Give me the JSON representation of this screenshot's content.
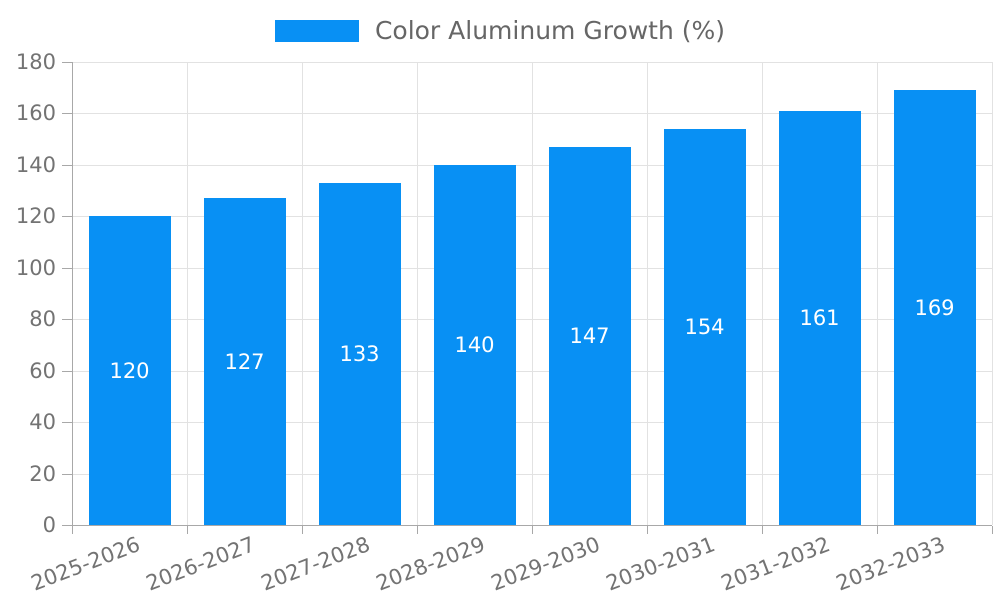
{
  "legend": {
    "label": "Color Aluminum Growth (%)",
    "swatch_color": "#0890F4"
  },
  "chart_data": {
    "type": "bar",
    "title": "Color Aluminum Growth (%)",
    "categories": [
      "2025-2026",
      "2026-2027",
      "2027-2028",
      "2028-2029",
      "2029-2030",
      "2030-2031",
      "2031-2032",
      "2032-2033"
    ],
    "values": [
      120,
      127,
      133,
      140,
      147,
      154,
      161,
      169
    ],
    "value_labels": [
      "120",
      "127",
      "133",
      "140",
      "147",
      "154",
      "161",
      "169"
    ],
    "ytick_labels": [
      "0",
      "20",
      "40",
      "60",
      "80",
      "100",
      "120",
      "140",
      "160",
      "180"
    ],
    "yticks": [
      0,
      20,
      40,
      60,
      80,
      100,
      120,
      140,
      160,
      180
    ],
    "ylim": [
      0,
      180
    ],
    "xlabel": "",
    "ylabel": "",
    "grid": true,
    "legend_position": "top",
    "colors": {
      "bar_fill": "#0890F4",
      "value_label": "#ffffff",
      "grid_line": "#e2e2e2",
      "axis_line": "#a8a8a8",
      "tick_label": "#737373",
      "legend_text": "#666666",
      "background": "#ffffff"
    }
  }
}
